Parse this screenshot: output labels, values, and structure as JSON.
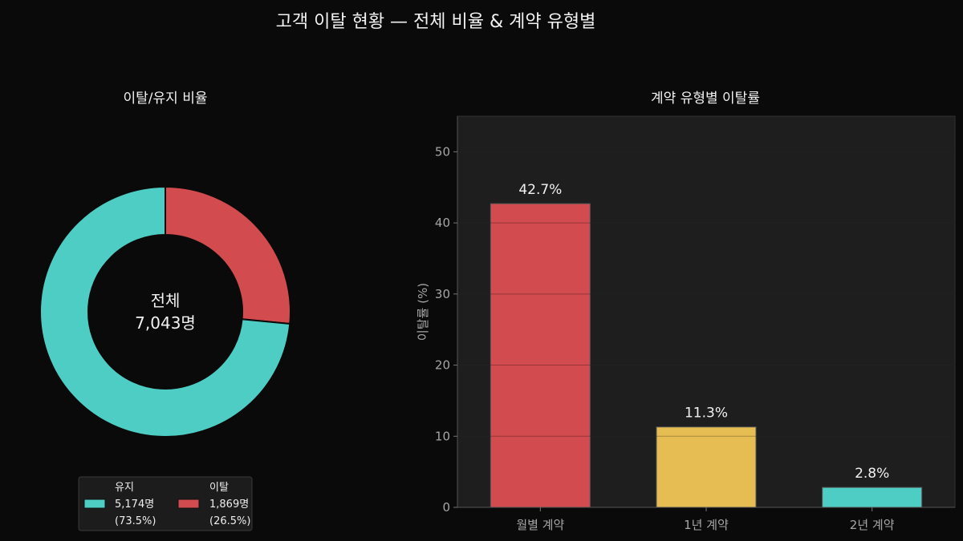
{
  "suptitle": "고객 이탈 현황 — 전체 비율 & 계약 유형별",
  "colors": {
    "background": "#0a0a0a",
    "panel": "#1e1e1e",
    "retain": "#4ecdc4",
    "churn": "#d14b4f",
    "one_year": "#e5bd52",
    "two_year": "#4ecdc4"
  },
  "chart_data": [
    {
      "type": "pie",
      "title": "이탈/유지 비율",
      "center_label": [
        "전체",
        "7,043명"
      ],
      "slices": [
        {
          "name": "이탈",
          "value": 1869,
          "percent": 26.5,
          "color": "#d14b4f",
          "legend": [
            "이탈",
            "1,869명",
            "(26.5%)"
          ]
        },
        {
          "name": "유지",
          "value": 5174,
          "percent": 73.5,
          "color": "#4ecdc4",
          "legend": [
            "유지",
            "5,174명",
            "(73.5%)"
          ]
        }
      ],
      "legend_order": [
        "유지",
        "이탈"
      ],
      "legend_position": "bottom-center"
    },
    {
      "type": "bar",
      "title": "계약 유형별 이탈률",
      "ylabel": "이탈률 (%)",
      "xlabel": "",
      "categories": [
        "월별 계약",
        "1년 계약",
        "2년 계약"
      ],
      "values": [
        42.7,
        11.3,
        2.8
      ],
      "value_labels": [
        "42.7%",
        "11.3%",
        "2.8%"
      ],
      "colors": [
        "#d14b4f",
        "#e5bd52",
        "#4ecdc4"
      ],
      "ylim": [
        0,
        55
      ],
      "yticks": [
        0,
        10,
        20,
        30,
        40,
        50
      ],
      "grid": true
    }
  ]
}
